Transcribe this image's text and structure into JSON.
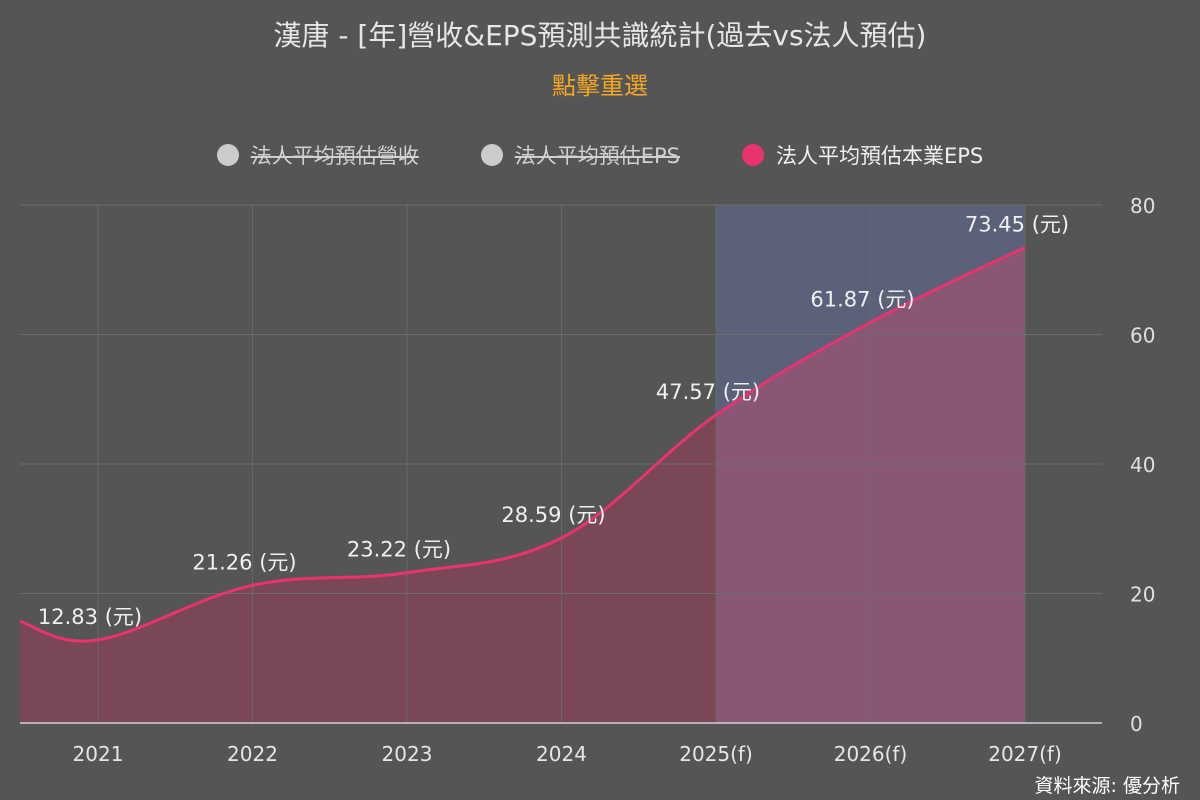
{
  "header": {
    "title": "漢唐 - [年]營收&EPS預測共識統計(過去vs法人預估)",
    "subtitle": "點擊重選"
  },
  "legend": [
    {
      "label": "法人平均預估營收",
      "active": false,
      "color": "#cccccc"
    },
    {
      "label": "法人平均預估EPS",
      "active": false,
      "color": "#cccccc"
    },
    {
      "label": "法人平均預估本業EPS",
      "active": true,
      "color": "#e8336d"
    }
  ],
  "chart_data": {
    "type": "area",
    "title": "漢唐 - [年]營收&EPS預測共識統計(過去vs法人預估)",
    "categories": [
      "2021",
      "2022",
      "2023",
      "2024",
      "2025(f)",
      "2026(f)",
      "2027(f)"
    ],
    "series": [
      {
        "name": "法人平均預估本業EPS",
        "values": [
          12.83,
          21.26,
          23.22,
          28.59,
          47.57,
          61.87,
          73.45
        ],
        "color": "#e8336d",
        "label_suffix": " (元)"
      }
    ],
    "forecast_start_category": "2025(f)",
    "ylim": [
      0,
      80
    ],
    "yticks": [
      0,
      20,
      40,
      60,
      80
    ],
    "y_axis_side": "right",
    "grid": true,
    "colors": {
      "area_past": "#7a4757",
      "area_forecast": "#8a5676",
      "forecast_band": "#5b6179",
      "line": "#e8336d",
      "grid": "#6c6c6c",
      "axis": "#d0d0dc"
    }
  },
  "footer": {
    "source": "資料來源: 優分析"
  }
}
